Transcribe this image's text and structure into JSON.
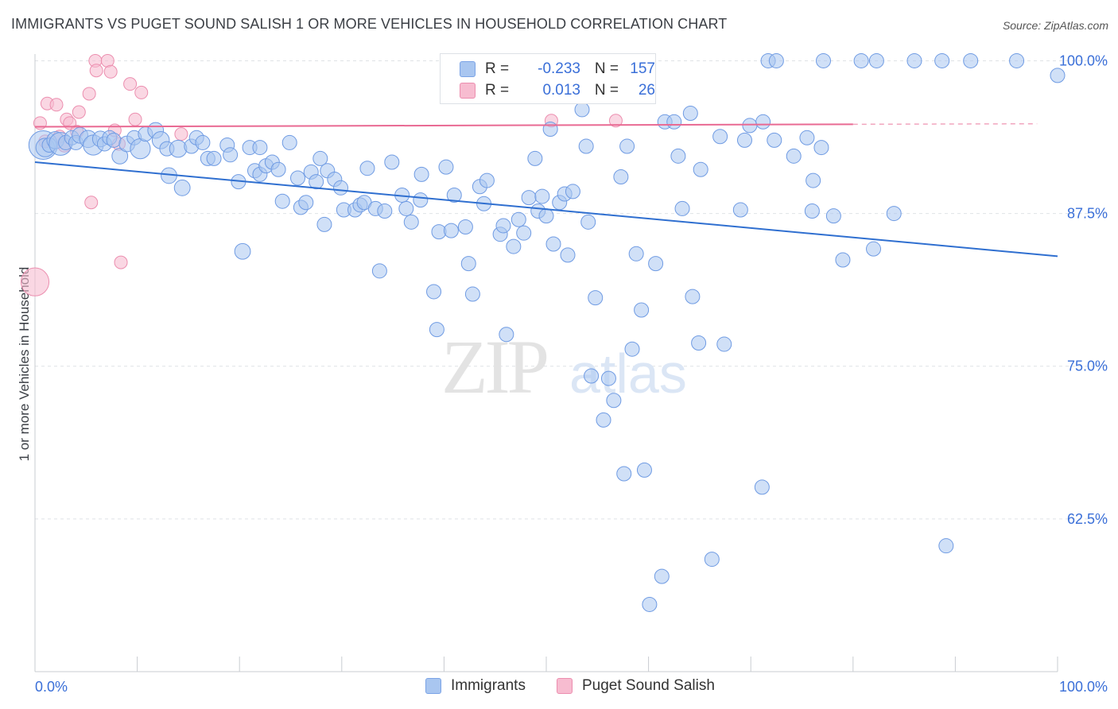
{
  "title": "IMMIGRANTS VS PUGET SOUND SALISH 1 OR MORE VEHICLES IN HOUSEHOLD CORRELATION CHART",
  "source": "Source: ZipAtlas.com",
  "watermark": {
    "zip": "ZIP",
    "atlas": "atlas"
  },
  "legend_top": {
    "rows": [
      {
        "r_label": "R =",
        "r_value": "-0.233",
        "n_label": "N =",
        "n_value": "157",
        "color": "#a9c6f0",
        "border": "#7aa3e6"
      },
      {
        "r_label": "R =",
        "r_value": "0.013",
        "n_label": "N =",
        "n_value": "26",
        "color": "#f7bcd0",
        "border": "#ec8eaf"
      }
    ]
  },
  "legend_bottom": {
    "items": [
      {
        "label": "Immigrants",
        "color": "#a9c6f0",
        "border": "#7aa3e6"
      },
      {
        "label": "Puget Sound Salish",
        "color": "#f7bcd0",
        "border": "#ec8eaf"
      }
    ]
  },
  "chart_data": {
    "type": "scatter",
    "title": "IMMIGRANTS VS PUGET SOUND SALISH 1 OR MORE VEHICLES IN HOUSEHOLD CORRELATION CHART",
    "xlabel": "",
    "ylabel": "1 or more Vehicles in Household",
    "xlim": [
      0,
      100
    ],
    "ylim": [
      50,
      101.2
    ],
    "x_tick_labels": [
      "0.0%",
      "100.0%"
    ],
    "y_ticks": [
      62.5,
      75.0,
      87.5,
      100.0
    ],
    "y_tick_labels": [
      "62.5%",
      "75.0%",
      "87.5%",
      "100.0%"
    ],
    "grid": true,
    "legend_placement": "top-center",
    "series": [
      {
        "name": "Immigrants",
        "color": "#a9c6f0",
        "stroke": "#6f9be3",
        "trend": {
          "x0": 0,
          "y0": 91.7,
          "x1": 100,
          "y1": 84.0,
          "color": "#2f6fd0"
        },
        "points": [
          [
            0.8,
            93.1,
            2
          ],
          [
            1.0,
            92.9,
            1.3
          ],
          [
            1.4,
            93.1,
            1
          ],
          [
            2.0,
            93.5,
            1.2
          ],
          [
            2.5,
            93.2,
            1.6
          ],
          [
            3.0,
            93.3,
            1
          ],
          [
            3.6,
            93.7,
            1
          ],
          [
            4.0,
            93.3,
            1
          ],
          [
            4.4,
            93.9,
            1.1
          ],
          [
            5.2,
            93.6,
            1.2
          ],
          [
            5.7,
            93.1,
            1.4
          ],
          [
            6.4,
            93.6,
            1.1
          ],
          [
            6.8,
            93.2,
            1
          ],
          [
            7.3,
            93.7,
            1
          ],
          [
            7.7,
            93.5,
            1
          ],
          [
            8.3,
            92.2,
            1.1
          ],
          [
            9.0,
            93.2,
            1.1
          ],
          [
            9.7,
            93.7,
            1
          ],
          [
            10.3,
            92.8,
            1.4
          ],
          [
            10.8,
            94.0,
            1
          ],
          [
            11.8,
            94.3,
            1.1
          ],
          [
            12.3,
            93.5,
            1.2
          ],
          [
            12.9,
            92.8,
            1
          ],
          [
            13.1,
            90.6,
            1.1
          ],
          [
            14.0,
            92.8,
            1.2
          ],
          [
            14.4,
            89.6,
            1.1
          ],
          [
            15.3,
            93.0,
            1
          ],
          [
            15.8,
            93.7,
            1
          ],
          [
            16.4,
            93.3,
            1
          ],
          [
            16.9,
            92.0,
            1
          ],
          [
            17.5,
            92.0,
            1
          ],
          [
            18.8,
            93.1,
            1
          ],
          [
            19.1,
            92.3,
            1
          ],
          [
            19.9,
            90.1,
            1
          ],
          [
            20.3,
            84.4,
            1.1
          ],
          [
            21.0,
            92.9,
            1
          ],
          [
            21.5,
            91.0,
            1
          ],
          [
            22.0,
            90.7,
            1
          ],
          [
            22.0,
            92.9,
            1
          ],
          [
            22.6,
            91.4,
            1
          ],
          [
            23.2,
            91.7,
            1
          ],
          [
            23.8,
            91.1,
            1
          ],
          [
            24.2,
            88.5,
            1
          ],
          [
            24.9,
            93.3,
            1
          ],
          [
            25.7,
            90.4,
            1
          ],
          [
            26.0,
            88.0,
            1
          ],
          [
            26.5,
            88.4,
            1
          ],
          [
            27.0,
            90.9,
            1
          ],
          [
            27.5,
            90.1,
            1
          ],
          [
            27.9,
            92.0,
            1
          ],
          [
            28.3,
            86.6,
            1
          ],
          [
            28.6,
            91.0,
            1
          ],
          [
            29.3,
            90.3,
            1
          ],
          [
            29.9,
            89.6,
            1
          ],
          [
            30.2,
            87.8,
            1
          ],
          [
            31.3,
            87.8,
            1
          ],
          [
            31.8,
            88.2,
            1
          ],
          [
            32.2,
            88.4,
            1
          ],
          [
            32.5,
            91.2,
            1
          ],
          [
            33.3,
            87.9,
            1
          ],
          [
            33.7,
            82.8,
            1
          ],
          [
            34.2,
            87.7,
            1
          ],
          [
            34.9,
            91.7,
            1
          ],
          [
            35.9,
            89.0,
            1
          ],
          [
            36.3,
            87.9,
            1
          ],
          [
            36.8,
            86.8,
            1
          ],
          [
            37.7,
            88.6,
            1
          ],
          [
            37.8,
            90.7,
            1
          ],
          [
            39.0,
            81.1,
            1
          ],
          [
            39.3,
            78.0,
            1
          ],
          [
            39.5,
            86.0,
            1
          ],
          [
            40.2,
            91.3,
            1
          ],
          [
            40.7,
            86.1,
            1
          ],
          [
            41.0,
            89.0,
            1
          ],
          [
            42.1,
            86.4,
            1
          ],
          [
            42.4,
            83.4,
            1
          ],
          [
            42.8,
            80.9,
            1
          ],
          [
            43.5,
            89.7,
            1
          ],
          [
            43.9,
            88.3,
            1
          ],
          [
            44.2,
            90.2,
            1
          ],
          [
            45.5,
            85.8,
            1
          ],
          [
            45.8,
            86.5,
            1
          ],
          [
            46.1,
            77.6,
            1
          ],
          [
            46.8,
            84.8,
            1
          ],
          [
            47.3,
            87.0,
            1
          ],
          [
            47.8,
            85.9,
            1
          ],
          [
            48.3,
            88.8,
            1
          ],
          [
            48.9,
            92.0,
            1
          ],
          [
            49.2,
            87.7,
            1
          ],
          [
            49.6,
            88.9,
            1
          ],
          [
            50.0,
            87.3,
            1
          ],
          [
            50.4,
            94.4,
            1
          ],
          [
            50.7,
            85.0,
            1
          ],
          [
            51.3,
            88.4,
            1
          ],
          [
            51.8,
            89.1,
            1
          ],
          [
            52.1,
            84.1,
            1
          ],
          [
            52.6,
            89.3,
            1
          ],
          [
            53.5,
            96.0,
            1
          ],
          [
            53.9,
            93.0,
            1
          ],
          [
            54.1,
            86.8,
            1
          ],
          [
            54.4,
            74.2,
            1
          ],
          [
            54.8,
            80.6,
            1
          ],
          [
            55.6,
            70.6,
            1
          ],
          [
            56.1,
            74.0,
            1
          ],
          [
            56.6,
            72.2,
            1
          ],
          [
            57.3,
            90.5,
            1
          ],
          [
            57.6,
            66.2,
            1
          ],
          [
            57.9,
            93.0,
            1
          ],
          [
            58.4,
            76.4,
            1
          ],
          [
            58.8,
            84.2,
            1
          ],
          [
            59.3,
            79.6,
            1
          ],
          [
            59.6,
            66.5,
            1
          ],
          [
            60.1,
            55.5,
            1
          ],
          [
            60.7,
            83.4,
            1
          ],
          [
            61.6,
            95.0,
            1
          ],
          [
            61.3,
            57.8,
            1
          ],
          [
            62.5,
            95.0,
            1
          ],
          [
            62.9,
            92.2,
            1
          ],
          [
            63.3,
            87.9,
            1
          ],
          [
            64.1,
            95.7,
            1
          ],
          [
            64.3,
            80.7,
            1
          ],
          [
            64.9,
            76.9,
            1
          ],
          [
            65.1,
            91.1,
            1
          ],
          [
            66.2,
            59.2,
            1
          ],
          [
            67.0,
            93.8,
            1
          ],
          [
            67.4,
            76.8,
            1
          ],
          [
            69.0,
            87.8,
            1
          ],
          [
            69.4,
            93.5,
            1
          ],
          [
            69.9,
            94.7,
            1
          ],
          [
            71.1,
            65.1,
            1
          ],
          [
            71.7,
            100.0,
            1
          ],
          [
            71.2,
            95.0,
            1
          ],
          [
            72.5,
            100.0,
            1
          ],
          [
            72.3,
            93.5,
            1
          ],
          [
            74.2,
            92.2,
            1
          ],
          [
            75.5,
            93.7,
            1
          ],
          [
            76.0,
            87.7,
            1
          ],
          [
            76.1,
            90.2,
            1
          ],
          [
            76.9,
            92.9,
            1
          ],
          [
            77.1,
            100.0,
            1
          ],
          [
            78.1,
            87.3,
            1
          ],
          [
            79.0,
            83.7,
            1
          ],
          [
            80.8,
            100.0,
            1
          ],
          [
            82.0,
            84.6,
            1
          ],
          [
            82.3,
            100.0,
            1
          ],
          [
            84.0,
            87.5,
            1
          ],
          [
            86.0,
            100.0,
            1
          ],
          [
            88.7,
            100.0,
            1
          ],
          [
            89.1,
            60.3,
            1
          ],
          [
            91.5,
            100.0,
            1
          ],
          [
            96.0,
            100.0,
            1
          ],
          [
            100.0,
            98.8,
            1
          ]
        ]
      },
      {
        "name": "Puget Sound Salish",
        "color": "#f7bcd0",
        "stroke": "#ec8eaf",
        "trend": {
          "x0": 0,
          "y0": 94.6,
          "x1": 80,
          "y1": 94.8,
          "color": "#e96a93",
          "dash_to": 98
        },
        "points": [
          [
            0.5,
            94.9,
            1
          ],
          [
            1.0,
            93.4,
            1
          ],
          [
            1.2,
            96.5,
            1
          ],
          [
            2.1,
            96.4,
            1
          ],
          [
            2.4,
            93.8,
            1
          ],
          [
            2.9,
            93.1,
            1.1
          ],
          [
            3.1,
            95.2,
            1
          ],
          [
            3.4,
            94.9,
            1
          ],
          [
            4.1,
            94.2,
            1
          ],
          [
            4.3,
            95.8,
            1
          ],
          [
            5.3,
            97.3,
            1
          ],
          [
            5.9,
            100.0,
            1
          ],
          [
            6.0,
            99.2,
            1
          ],
          [
            5.5,
            88.4,
            1
          ],
          [
            7.1,
            100.0,
            1
          ],
          [
            7.4,
            99.1,
            1
          ],
          [
            7.8,
            94.3,
            1
          ],
          [
            8.2,
            93.2,
            1
          ],
          [
            8.4,
            83.5,
            1
          ],
          [
            9.3,
            98.1,
            1
          ],
          [
            9.8,
            95.2,
            1
          ],
          [
            10.4,
            97.4,
            1
          ],
          [
            14.3,
            94.0,
            1
          ],
          [
            50.5,
            95.1,
            1
          ],
          [
            56.8,
            95.1,
            1
          ],
          [
            0.0,
            81.9,
            2.2
          ]
        ]
      }
    ]
  }
}
